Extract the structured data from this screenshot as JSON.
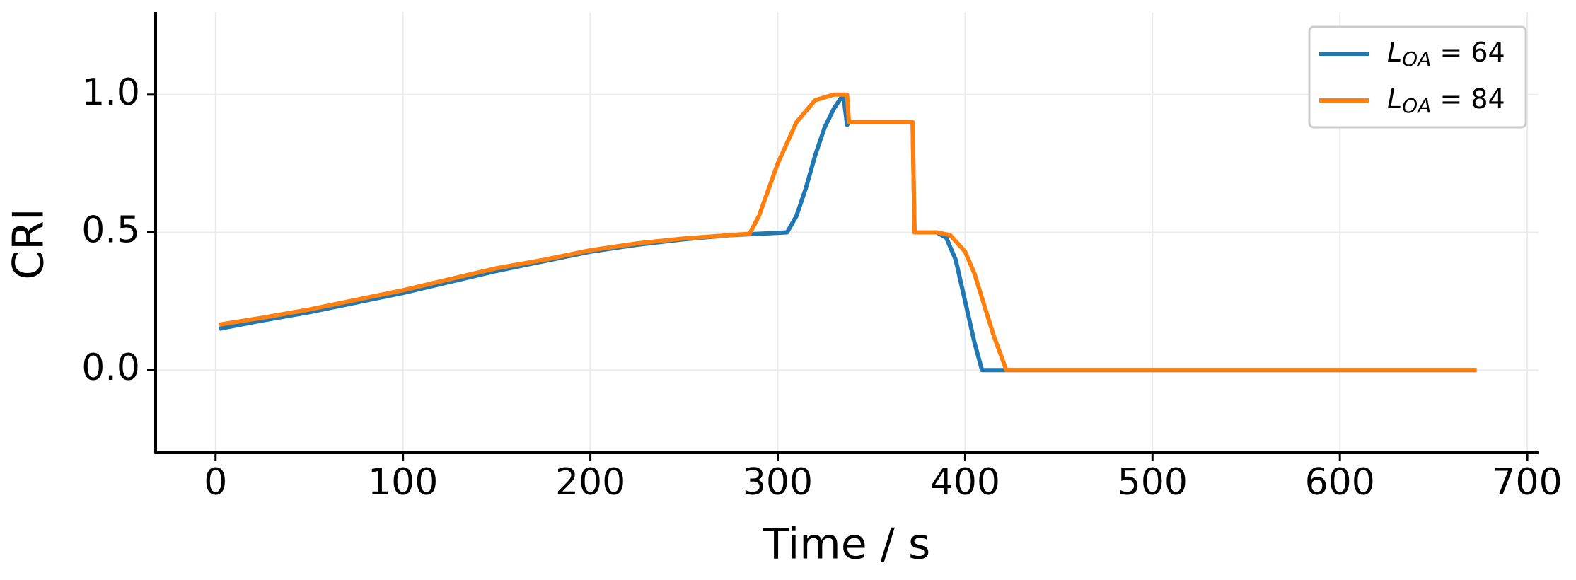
{
  "chart_data": {
    "type": "line",
    "xlabel": "Time / s",
    "ylabel": "CRI",
    "xlim": [
      -32,
      706
    ],
    "ylim": [
      -0.3,
      1.3
    ],
    "xticks": [
      0,
      100,
      200,
      300,
      400,
      500,
      600,
      700
    ],
    "yticks": [
      {
        "value": 0,
        "label": "0.0"
      },
      {
        "value": 0.5,
        "label": "0.5"
      },
      {
        "value": 1,
        "label": "1.0"
      }
    ],
    "grid": true,
    "legend": "upper right",
    "series": [
      {
        "name": "L_OA = 64",
        "color": "#1f77b4",
        "x": [
          2,
          25,
          50,
          75,
          100,
          125,
          150,
          175,
          200,
          225,
          250,
          275,
          290,
          305,
          310,
          315,
          320,
          325,
          330,
          335,
          337,
          338,
          372,
          373,
          385,
          390,
          395,
          400,
          405,
          409,
          450,
          500,
          550,
          600,
          673
        ],
        "values": [
          0.15,
          0.18,
          0.21,
          0.245,
          0.28,
          0.32,
          0.36,
          0.395,
          0.43,
          0.455,
          0.475,
          0.49,
          0.495,
          0.5,
          0.56,
          0.66,
          0.78,
          0.88,
          0.95,
          1.0,
          0.89,
          0.9,
          0.9,
          0.5,
          0.5,
          0.48,
          0.4,
          0.25,
          0.1,
          0,
          0,
          0,
          0,
          0,
          0
        ]
      },
      {
        "name": "L_OA = 84",
        "color": "#ff7f0e",
        "x": [
          2,
          25,
          50,
          75,
          100,
          125,
          150,
          175,
          200,
          225,
          250,
          275,
          285,
          290,
          300,
          310,
          320,
          330,
          337,
          338,
          372,
          373,
          385,
          392,
          400,
          405,
          410,
          415,
          422,
          450,
          500,
          550,
          600,
          673
        ],
        "values": [
          0.165,
          0.19,
          0.22,
          0.255,
          0.29,
          0.33,
          0.37,
          0.4,
          0.435,
          0.46,
          0.478,
          0.49,
          0.495,
          0.56,
          0.75,
          0.9,
          0.98,
          1.0,
          1.0,
          0.9,
          0.9,
          0.5,
          0.5,
          0.49,
          0.43,
          0.35,
          0.24,
          0.13,
          0,
          0,
          0,
          0,
          0,
          0
        ]
      }
    ]
  }
}
